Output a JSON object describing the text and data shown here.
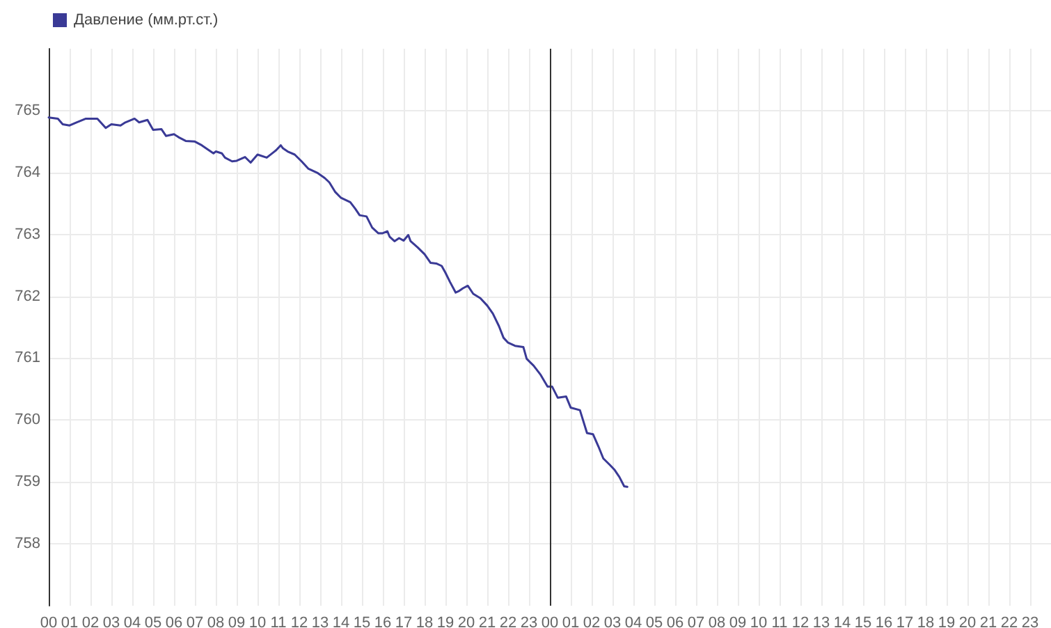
{
  "chart_data": {
    "type": "line",
    "x": [
      0,
      0.44,
      0.67,
      1.0,
      1.33,
      1.78,
      2.33,
      2.73,
      3.0,
      3.44,
      3.67,
      4.11,
      4.33,
      4.73,
      5.0,
      5.4,
      5.62,
      6.0,
      6.22,
      6.56,
      7.0,
      7.33,
      7.67,
      7.89,
      8.0,
      8.29,
      8.44,
      8.78,
      9.0,
      9.4,
      9.67,
      10.0,
      10.44,
      10.78,
      10.89,
      11.11,
      11.22,
      11.44,
      11.78,
      12.11,
      12.44,
      12.89,
      13.22,
      13.44,
      13.71,
      14.0,
      14.44,
      14.67,
      14.89,
      15.22,
      15.49,
      15.78,
      16.0,
      16.22,
      16.33,
      16.56,
      16.78,
      17.0,
      17.22,
      17.33,
      17.67,
      18.0,
      18.29,
      18.56,
      18.82,
      19.0,
      19.22,
      19.49,
      19.67,
      19.84,
      20.07,
      20.33,
      20.67,
      21.0,
      21.27,
      21.56,
      21.78,
      22.0,
      22.33,
      22.73,
      22.89,
      23.22,
      23.56,
      23.89,
      24.11,
      24.38,
      24.78,
      25.0,
      25.44,
      25.78,
      26.07,
      26.33,
      26.56,
      26.89,
      27.11,
      27.33,
      27.56,
      27.71
    ],
    "series": [
      {
        "name": "Давление (мм.рт.ст.)",
        "color": "#3a3a96",
        "values": [
          764.89,
          764.87,
          764.78,
          764.76,
          764.81,
          764.87,
          764.87,
          764.72,
          764.78,
          764.76,
          764.81,
          764.87,
          764.81,
          764.85,
          764.69,
          764.7,
          764.59,
          764.62,
          764.57,
          764.51,
          764.5,
          764.44,
          764.36,
          764.31,
          764.34,
          764.31,
          764.24,
          764.18,
          764.19,
          764.25,
          764.16,
          764.29,
          764.24,
          764.33,
          764.36,
          764.44,
          764.39,
          764.34,
          764.29,
          764.18,
          764.06,
          763.99,
          763.91,
          763.84,
          763.69,
          763.59,
          763.52,
          763.42,
          763.31,
          763.29,
          763.11,
          763.02,
          763.02,
          763.05,
          762.96,
          762.89,
          762.94,
          762.9,
          762.99,
          762.89,
          762.79,
          762.68,
          762.54,
          762.53,
          762.49,
          762.38,
          762.23,
          762.06,
          762.09,
          762.13,
          762.17,
          762.04,
          761.97,
          761.85,
          761.72,
          761.52,
          761.33,
          761.25,
          761.2,
          761.18,
          760.99,
          760.88,
          760.73,
          760.54,
          760.54,
          760.36,
          760.38,
          760.2,
          760.16,
          759.79,
          759.77,
          759.57,
          759.38,
          759.27,
          759.19,
          759.08,
          758.93,
          758.92
        ]
      }
    ],
    "xlim": [
      0,
      48
    ],
    "xticks": [
      {
        "value": 0,
        "label": "00"
      },
      {
        "value": 1,
        "label": "01"
      },
      {
        "value": 2,
        "label": "02"
      },
      {
        "value": 3,
        "label": "03"
      },
      {
        "value": 4,
        "label": "04"
      },
      {
        "value": 5,
        "label": "05"
      },
      {
        "value": 6,
        "label": "06"
      },
      {
        "value": 7,
        "label": "07"
      },
      {
        "value": 8,
        "label": "08"
      },
      {
        "value": 9,
        "label": "09"
      },
      {
        "value": 10,
        "label": "10"
      },
      {
        "value": 11,
        "label": "11"
      },
      {
        "value": 12,
        "label": "12"
      },
      {
        "value": 13,
        "label": "13"
      },
      {
        "value": 14,
        "label": "14"
      },
      {
        "value": 15,
        "label": "15"
      },
      {
        "value": 16,
        "label": "16"
      },
      {
        "value": 17,
        "label": "17"
      },
      {
        "value": 18,
        "label": "18"
      },
      {
        "value": 19,
        "label": "19"
      },
      {
        "value": 20,
        "label": "20"
      },
      {
        "value": 21,
        "label": "21"
      },
      {
        "value": 22,
        "label": "22"
      },
      {
        "value": 23,
        "label": "23"
      },
      {
        "value": 24,
        "label": "00"
      },
      {
        "value": 25,
        "label": "01"
      },
      {
        "value": 26,
        "label": "02"
      },
      {
        "value": 27,
        "label": "03"
      },
      {
        "value": 28,
        "label": "04"
      },
      {
        "value": 29,
        "label": "05"
      },
      {
        "value": 30,
        "label": "06"
      },
      {
        "value": 31,
        "label": "07"
      },
      {
        "value": 32,
        "label": "08"
      },
      {
        "value": 33,
        "label": "09"
      },
      {
        "value": 34,
        "label": "10"
      },
      {
        "value": 35,
        "label": "11"
      },
      {
        "value": 36,
        "label": "12"
      },
      {
        "value": 37,
        "label": "13"
      },
      {
        "value": 38,
        "label": "14"
      },
      {
        "value": 39,
        "label": "15"
      },
      {
        "value": 40,
        "label": "16"
      },
      {
        "value": 41,
        "label": "17"
      },
      {
        "value": 42,
        "label": "18"
      },
      {
        "value": 43,
        "label": "19"
      },
      {
        "value": 44,
        "label": "20"
      },
      {
        "value": 45,
        "label": "21"
      },
      {
        "value": 46,
        "label": "22"
      },
      {
        "value": 47,
        "label": "23"
      }
    ],
    "ylim": [
      757,
      766
    ],
    "yticks": [
      758,
      759,
      760,
      761,
      762,
      763,
      764,
      765
    ],
    "ref_lines": [
      {
        "axis": "x",
        "value": 24,
        "color": "#333333"
      }
    ],
    "grid": true,
    "legend": "top left",
    "marker": "none",
    "line_style": "solid"
  }
}
